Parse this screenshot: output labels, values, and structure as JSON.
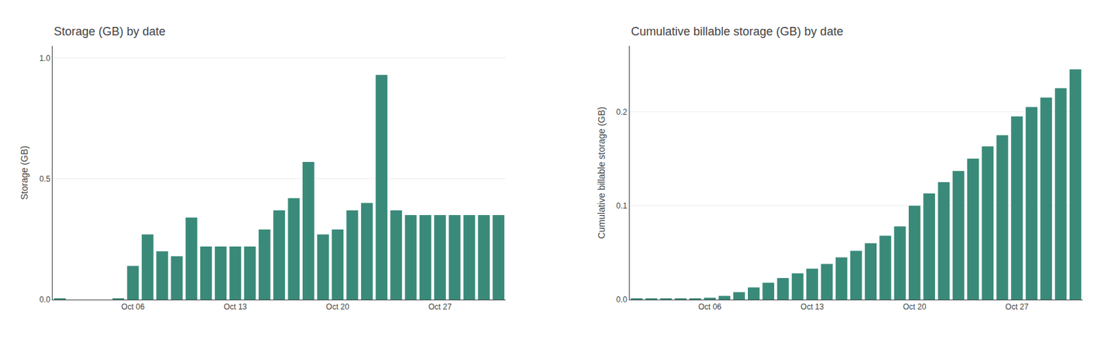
{
  "chart_data": [
    {
      "type": "bar",
      "title": "Storage (GB) by date",
      "ylabel": "Storage (GB)",
      "categories": [
        null,
        null,
        null,
        null,
        null,
        "Oct 06",
        null,
        null,
        null,
        null,
        null,
        null,
        "Oct 13",
        null,
        null,
        null,
        null,
        null,
        null,
        "Oct 20",
        null,
        null,
        null,
        null,
        null,
        null,
        "Oct 27",
        null,
        null,
        null,
        null
      ],
      "values": [
        0.005,
        0.0,
        0.0,
        0.0,
        0.005,
        0.14,
        0.27,
        0.2,
        0.18,
        0.34,
        0.22,
        0.22,
        0.22,
        0.22,
        0.29,
        0.37,
        0.42,
        0.57,
        0.27,
        0.29,
        0.37,
        0.4,
        0.93,
        0.37,
        0.35,
        0.35,
        0.35,
        0.35,
        0.35,
        0.35,
        0.35
      ],
      "color": "#3a8a7a",
      "ylim": [
        0,
        1.05
      ],
      "yticks": [
        {
          "value": 0.0,
          "label": "0.0"
        },
        0.5,
        {
          "value": 1.0,
          "label": "1.0"
        }
      ],
      "grid": true
    },
    {
      "type": "bar",
      "title": "Cumulative billable storage (GB) by date",
      "ylabel": "Cumulative billable storage (GB)",
      "categories": [
        null,
        null,
        null,
        null,
        null,
        "Oct 06",
        null,
        null,
        null,
        null,
        null,
        null,
        "Oct 13",
        null,
        null,
        null,
        null,
        null,
        null,
        "Oct 20",
        null,
        null,
        null,
        null,
        null,
        null,
        "Oct 27",
        null,
        null,
        null,
        null
      ],
      "values": [
        0.001,
        0.001,
        0.001,
        0.001,
        0.001,
        0.002,
        0.004,
        0.008,
        0.013,
        0.018,
        0.023,
        0.028,
        0.033,
        0.038,
        0.045,
        0.052,
        0.06,
        0.068,
        0.078,
        0.1,
        0.113,
        0.125,
        0.137,
        0.15,
        0.163,
        0.175,
        0.195,
        0.205,
        0.215,
        0.225,
        0.245
      ],
      "color": "#3a8a7a",
      "ylim": [
        0,
        0.27
      ],
      "yticks": [
        {
          "value": 0.0,
          "label": "0.0"
        },
        0.1,
        0.2
      ],
      "grid": true
    }
  ]
}
